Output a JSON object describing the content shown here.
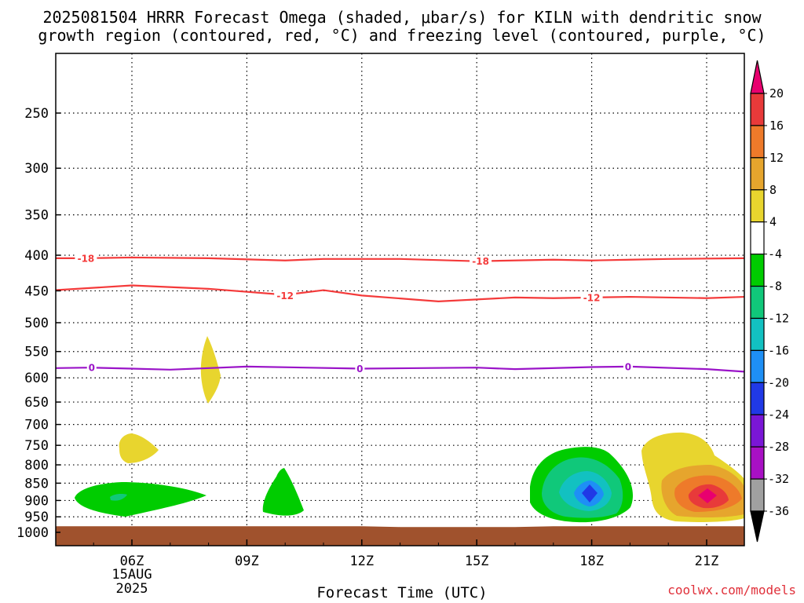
{
  "title_line1": "2025081504 HRRR Forecast Omega (shaded, μbar/s) for KILN with dendritic snow",
  "title_line2": "growth region (contoured, red, °C) and freezing level (contoured, purple, °C)",
  "xaxis_title": "Forecast Time (UTC)",
  "credit": "coolwx.com/models",
  "chart_data": {
    "type": "heatmap",
    "title": "2025081504 HRRR Forecast Omega (shaded, μbar/s) for KILN with dendritic snow growth region (contoured, red, °C) and freezing level (contoured, purple, °C)",
    "xlabel": "Forecast Time (UTC)",
    "ylabel": "",
    "x_start_hour": 4,
    "x_end_hour": 22,
    "x_ticks": [
      {
        "hour": 6,
        "label": "06Z",
        "sub1": "15AUG",
        "sub2": "2025"
      },
      {
        "hour": 9,
        "label": "09Z"
      },
      {
        "hour": 12,
        "label": "12Z"
      },
      {
        "hour": 15,
        "label": "15Z"
      },
      {
        "hour": 18,
        "label": "18Z"
      },
      {
        "hour": 21,
        "label": "21Z"
      }
    ],
    "y_ticks": [
      250,
      300,
      350,
      400,
      450,
      500,
      550,
      600,
      650,
      700,
      750,
      800,
      850,
      900,
      950,
      1000
    ],
    "y_scale": "log (pressure, hPa)",
    "grid": true,
    "colorbar": {
      "levels": [
        20,
        16,
        12,
        8,
        4,
        -4,
        -8,
        -12,
        -16,
        -20,
        -24,
        -28,
        -32,
        -36
      ],
      "colors": [
        "#e8006f",
        "#e83a3a",
        "#ee7a2a",
        "#e6a52d",
        "#e8d52e",
        "#ffffff",
        "#00cc00",
        "#10c87a",
        "#12c1c1",
        "#1e8ff5",
        "#2039e6",
        "#7a16d6",
        "#a810c4",
        "#a0a0a0",
        "#000000"
      ]
    },
    "contours": [
      {
        "name": "-18",
        "color": "#f43a3a",
        "kind": "dendritic snow growth region (°C)",
        "points": [
          [
            4,
            404
          ],
          [
            4.8,
            404
          ],
          [
            6,
            403
          ],
          [
            8,
            404
          ],
          [
            10,
            407
          ],
          [
            11,
            405
          ],
          [
            13,
            405
          ],
          [
            15,
            408
          ],
          [
            17,
            406
          ],
          [
            18,
            407
          ],
          [
            19,
            406
          ],
          [
            20,
            405
          ],
          [
            22,
            404
          ]
        ],
        "labels": [
          [
            4.8,
            404
          ],
          [
            15.1,
            408
          ]
        ]
      },
      {
        "name": "-12",
        "color": "#f43a3a",
        "kind": "dendritic snow growth region (°C)",
        "points": [
          [
            4,
            449
          ],
          [
            6,
            442
          ],
          [
            8,
            447
          ],
          [
            10,
            456
          ],
          [
            11,
            449
          ],
          [
            12,
            457
          ],
          [
            14,
            466
          ],
          [
            16,
            460
          ],
          [
            17,
            461
          ],
          [
            19,
            459
          ],
          [
            21,
            461
          ],
          [
            22,
            459
          ]
        ],
        "labels": [
          [
            10,
            457
          ],
          [
            18,
            460
          ]
        ]
      },
      {
        "name": "0",
        "color": "#9a14c8",
        "kind": "freezing level (°C)",
        "points": [
          [
            4,
            581
          ],
          [
            4.9,
            580
          ],
          [
            6,
            582
          ],
          [
            7,
            584
          ],
          [
            9,
            578
          ],
          [
            12,
            582
          ],
          [
            15,
            580
          ],
          [
            16,
            583
          ],
          [
            18,
            579
          ],
          [
            19,
            578
          ],
          [
            21,
            583
          ],
          [
            22,
            588
          ]
        ],
        "labels": [
          [
            4.95,
            580
          ],
          [
            11.95,
            582
          ],
          [
            18.95,
            578
          ]
        ]
      }
    ],
    "omega_features": [
      {
        "hour": 5.6,
        "pressure": 775,
        "omega": 4,
        "sign": "upward"
      },
      {
        "hour": 8.0,
        "pressure": 590,
        "omega": 4,
        "sign": "upward"
      },
      {
        "hour": 5.7,
        "pressure": 900,
        "omega": -8,
        "sign": "downward"
      },
      {
        "hour": 10.0,
        "pressure": 880,
        "omega": -4,
        "sign": "downward"
      },
      {
        "hour": 17.8,
        "pressure": 880,
        "omega": -20,
        "sign": "downward"
      },
      {
        "hour": 21.0,
        "pressure": 885,
        "omega": 20,
        "sign": "upward"
      }
    ],
    "surface_fill": {
      "color": "#a0522d",
      "pressure_top": 980
    }
  }
}
